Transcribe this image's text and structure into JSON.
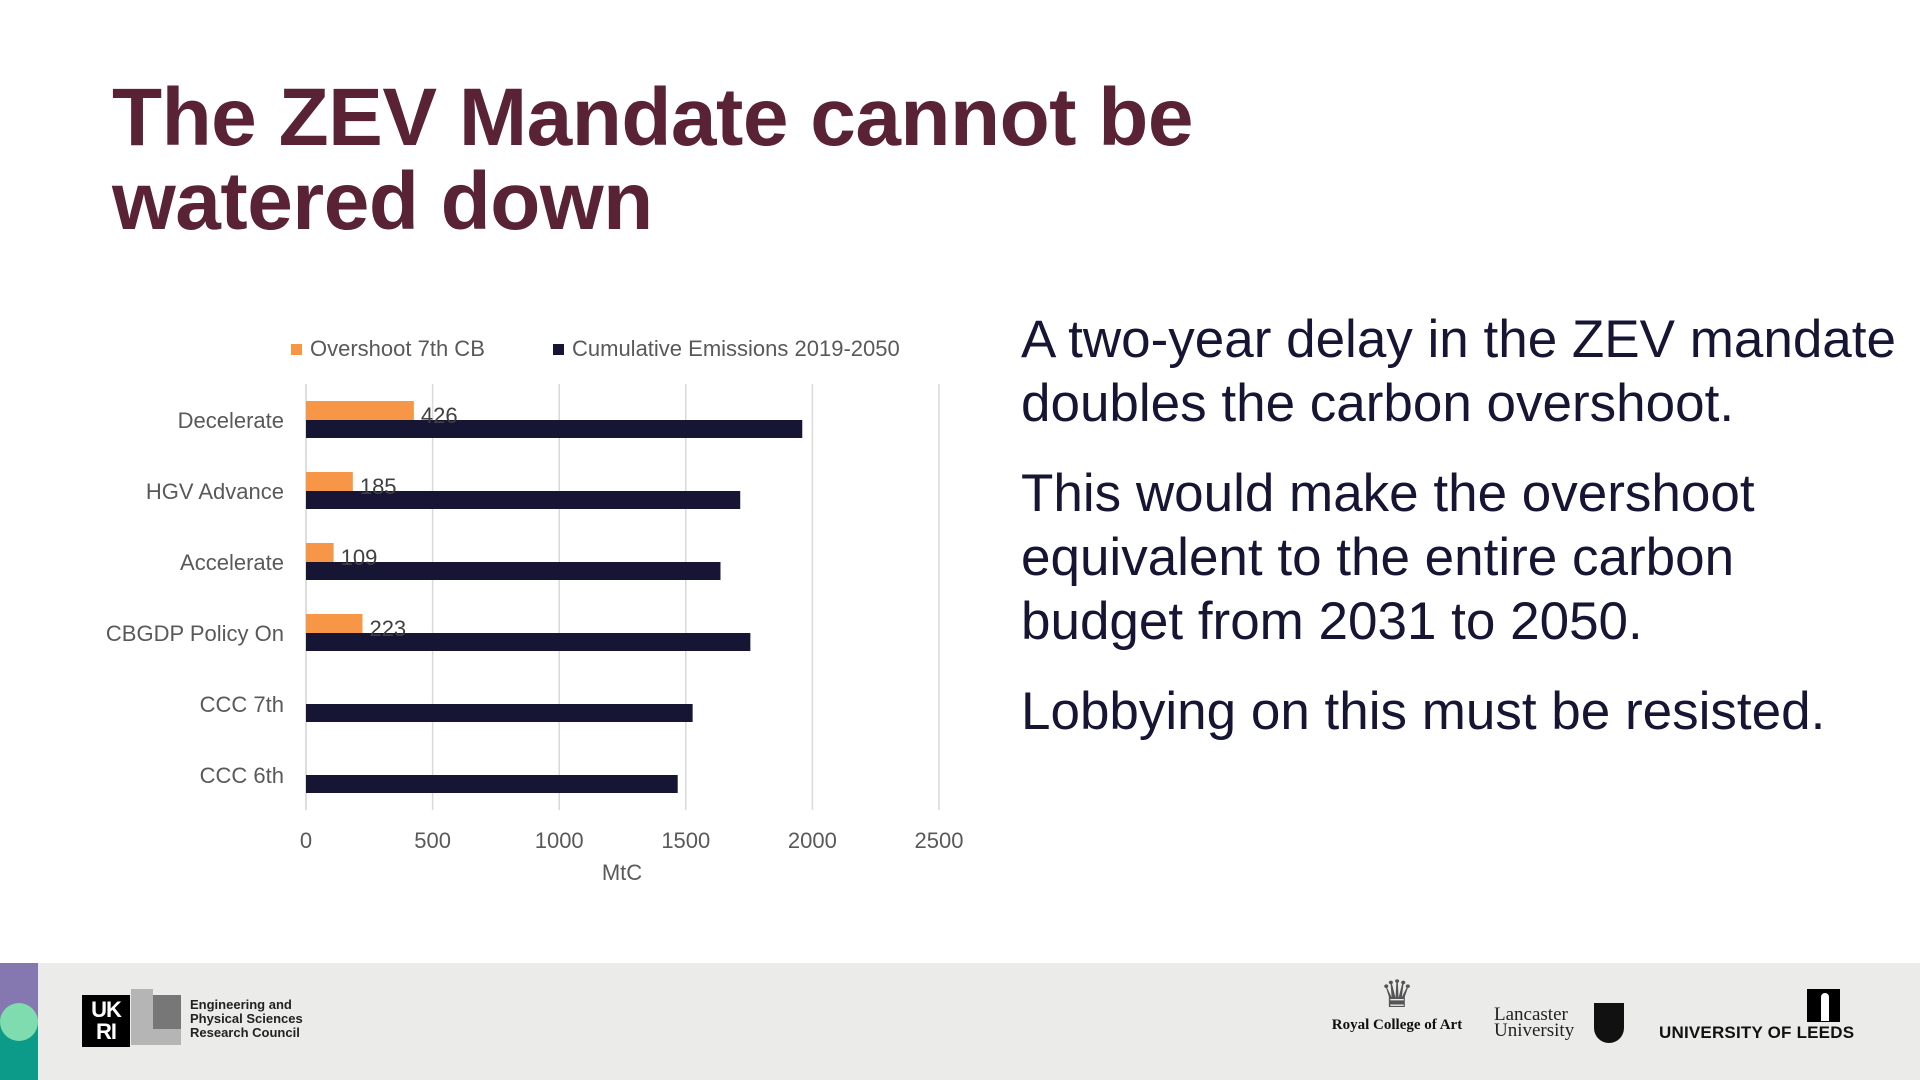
{
  "slide": {
    "title_lines": [
      "The ZEV Mandate cannot be",
      "watered down"
    ],
    "paragraphs": [
      "A two-year delay in the ZEV mandate doubles the carbon overshoot.",
      "This would make the overshoot equivalent to the entire carbon budget from 2031 to 2050.",
      "Lobbying on this must be resisted."
    ],
    "colors": {
      "title": "#5a2235",
      "body": "#161634"
    }
  },
  "chart_data": {
    "type": "bar",
    "orientation": "horizontal",
    "title": "",
    "categories": [
      "Decelerate",
      "HGV Advance",
      "Accelerate",
      "CBGDP Policy On",
      "CCC 7th",
      "CCC 6th"
    ],
    "series": [
      {
        "name": "Overshoot 7th CB",
        "color": "#f79646",
        "values": [
          426,
          185,
          109,
          223,
          null,
          null
        ],
        "data_labels": [
          "426",
          "185",
          "109",
          "223",
          "",
          ""
        ]
      },
      {
        "name": "Cumulative Emissions 2019-2050",
        "color": "#161634",
        "values": [
          1960,
          1715,
          1637,
          1755,
          1527,
          1468
        ]
      }
    ],
    "xlabel": "MtC",
    "ylabel": "",
    "xlim": [
      0,
      2500
    ],
    "xticks": [
      "0",
      "500",
      "1000",
      "1500",
      "2000",
      "2500"
    ],
    "grid": "vertical",
    "legend": "top"
  },
  "footer": {
    "epsrc_lines": [
      "Engineering and",
      "Physical Sciences",
      "Research Council"
    ],
    "ukri_logo": "UK RI",
    "rca": "Royal College of Art",
    "lancaster_lines": [
      "Lancaster",
      "University"
    ],
    "leeds": "UNIVERSITY OF LEEDS",
    "strip_colors": {
      "top": "#8577b0",
      "bottom": "#0d9b89",
      "dot": "#7fdcae"
    }
  }
}
